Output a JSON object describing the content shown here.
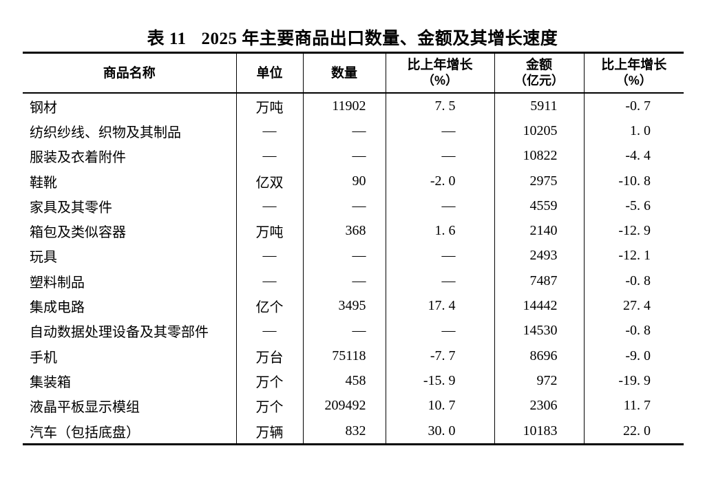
{
  "table": {
    "title_prefix": "表 11",
    "title_text": "2025 年主要商品出口数量、金额及其增长速度",
    "columns": [
      {
        "label": "商品名称"
      },
      {
        "label": "单位"
      },
      {
        "label": "数量"
      },
      {
        "label": "比上年增长",
        "sub": "（%）"
      },
      {
        "label": "金额",
        "sub": "（亿元）"
      },
      {
        "label": "比上年增长",
        "sub": "（%）"
      }
    ],
    "rows": [
      [
        "钢材",
        "万吨",
        "11902",
        "7. 5",
        "5911",
        "-0. 7"
      ],
      [
        "纺织纱线、织物及其制品",
        "—",
        "—",
        "—",
        "10205",
        "1. 0"
      ],
      [
        "服装及衣着附件",
        "—",
        "—",
        "—",
        "10822",
        "-4. 4"
      ],
      [
        "鞋靴",
        "亿双",
        "90",
        "-2. 0",
        "2975",
        "-10. 8"
      ],
      [
        "家具及其零件",
        "—",
        "—",
        "—",
        "4559",
        "-5. 6"
      ],
      [
        "箱包及类似容器",
        "万吨",
        "368",
        "1. 6",
        "2140",
        "-12. 9"
      ],
      [
        "玩具",
        "—",
        "—",
        "—",
        "2493",
        "-12. 1"
      ],
      [
        "塑料制品",
        "—",
        "—",
        "—",
        "7487",
        "-0. 8"
      ],
      [
        "集成电路",
        "亿个",
        "3495",
        "17. 4",
        "14442",
        "27. 4"
      ],
      [
        "自动数据处理设备及其零部件",
        "—",
        "—",
        "—",
        "14530",
        "-0. 8"
      ],
      [
        "手机",
        "万台",
        "75118",
        "-7. 7",
        "8696",
        "-9. 0"
      ],
      [
        "集装箱",
        "万个",
        "458",
        "-15. 9",
        "972",
        "-19. 9"
      ],
      [
        "液晶平板显示模组",
        "万个",
        "209492",
        "10. 7",
        "2306",
        "11. 7"
      ],
      [
        "汽车（包括底盘）",
        "万辆",
        "832",
        "30. 0",
        "10183",
        "22. 0"
      ]
    ]
  }
}
